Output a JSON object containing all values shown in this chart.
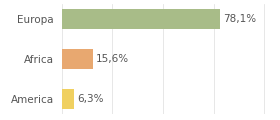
{
  "categories": [
    "America",
    "Africa",
    "Europa"
  ],
  "values": [
    6.3,
    15.6,
    78.1
  ],
  "labels": [
    "6,3%",
    "15,6%",
    "78,1%"
  ],
  "bar_colors": [
    "#f0d060",
    "#e8a870",
    "#a8bc88"
  ],
  "xlim": [
    0,
    105
  ],
  "background_color": "#ffffff",
  "label_fontsize": 7.5,
  "bar_height": 0.5,
  "figwidth": 2.8,
  "figheight": 1.2,
  "dpi": 100
}
